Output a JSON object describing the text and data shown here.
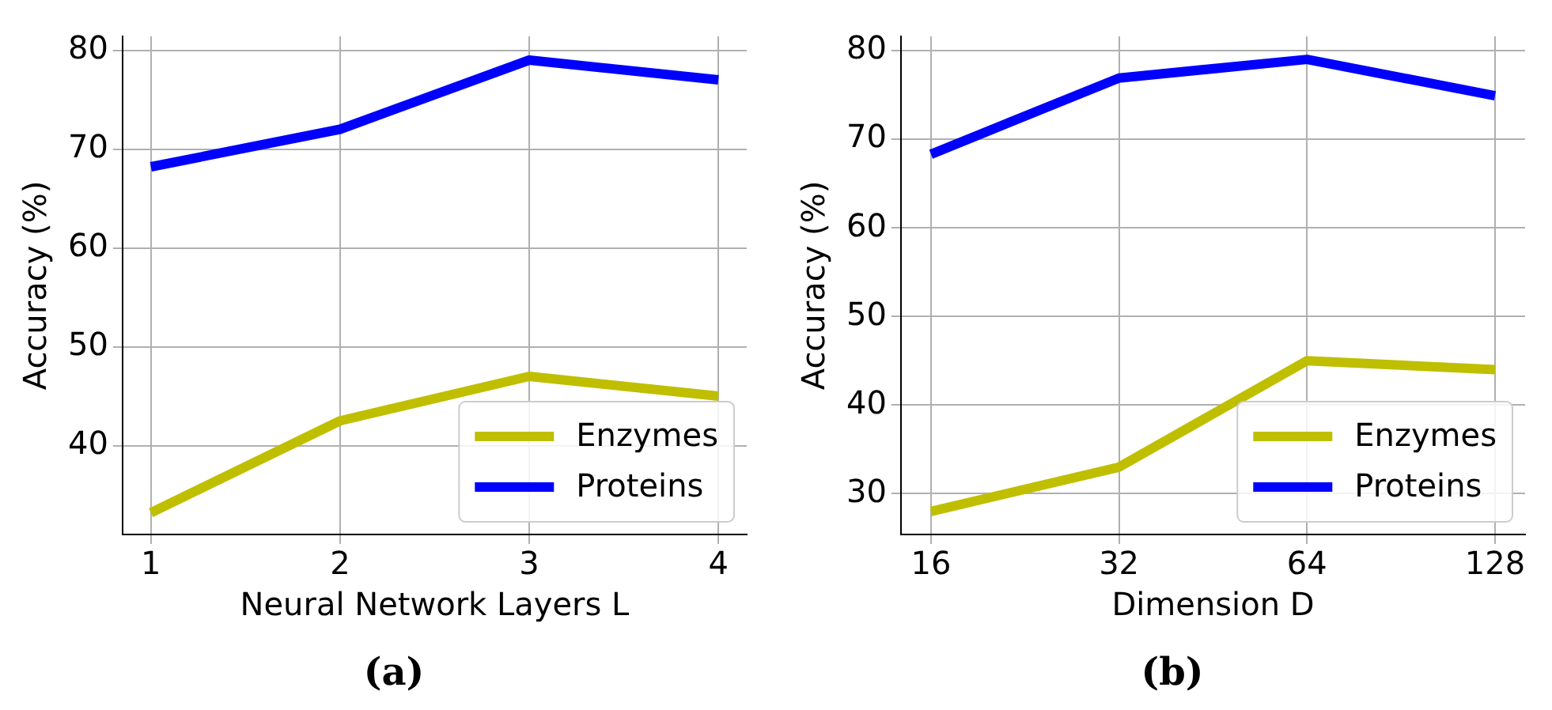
{
  "chart_data": [
    {
      "type": "line",
      "title": "(a)",
      "xlabel": "Neural Network Layers L",
      "ylabel": "Accuracy (%)",
      "x": [
        1,
        2,
        3,
        4
      ],
      "xlim": [
        0.85,
        4.15
      ],
      "xticks": [
        1,
        2,
        3,
        4
      ],
      "ylim": [
        31,
        81.4
      ],
      "yticks": [
        40,
        50,
        60,
        70,
        80
      ],
      "grid": true,
      "legend": "bottom right",
      "series": [
        {
          "name": "Enzymes",
          "color": "#bfbf00",
          "values": [
            33.2,
            42.5,
            47,
            45
          ]
        },
        {
          "name": "Proteins",
          "color": "#0000ff",
          "values": [
            68.2,
            72,
            79,
            77
          ]
        }
      ]
    },
    {
      "type": "line",
      "title": "(b)",
      "xlabel": "Dimension D",
      "ylabel": "Accuracy (%)",
      "categories": [
        "16",
        "32",
        "64",
        "128"
      ],
      "ylim": [
        25.4,
        81.6
      ],
      "yticks": [
        30,
        40,
        50,
        60,
        70,
        80
      ],
      "grid": true,
      "legend": "bottom right",
      "series": [
        {
          "name": "Enzymes",
          "color": "#bfbf00",
          "values": [
            28,
            33,
            45,
            44
          ]
        },
        {
          "name": "Proteins",
          "color": "#0000ff",
          "values": [
            68.3,
            76.9,
            79,
            74.9
          ]
        }
      ]
    }
  ]
}
